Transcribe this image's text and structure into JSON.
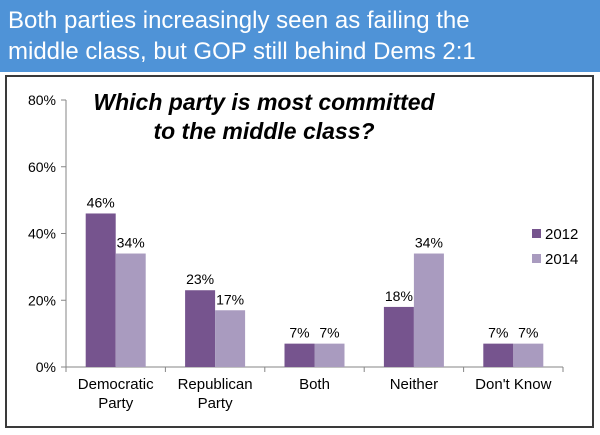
{
  "banner": {
    "line1": "Both parties increasingly seen as failing the",
    "line2": "middle class, but GOP still behind Dems 2:1"
  },
  "colors": {
    "banner_bg": "#4f93d7",
    "series_2012": "#76548e",
    "series_2014": "#a99bbf",
    "axis": "#868686",
    "frame": "#3a3a3a"
  },
  "chart_data": {
    "type": "bar",
    "title_line1": "Which party is most committed",
    "title_line2": "to the middle class?",
    "categories": [
      [
        "Democratic",
        "Party"
      ],
      [
        "Republican",
        "Party"
      ],
      [
        "Both"
      ],
      [
        "Neither"
      ],
      [
        "Don't Know"
      ]
    ],
    "series": [
      {
        "name": "2012",
        "values": [
          46,
          23,
          7,
          18,
          7
        ]
      },
      {
        "name": "2014",
        "values": [
          34,
          17,
          7,
          34,
          7
        ]
      }
    ],
    "value_suffix": "%",
    "ylim": [
      0,
      80
    ],
    "yticks": [
      0,
      20,
      40,
      60,
      80
    ],
    "ytick_labels": [
      "0%",
      "20%",
      "40%",
      "60%",
      "80%"
    ],
    "grid": false,
    "legend": "right"
  }
}
